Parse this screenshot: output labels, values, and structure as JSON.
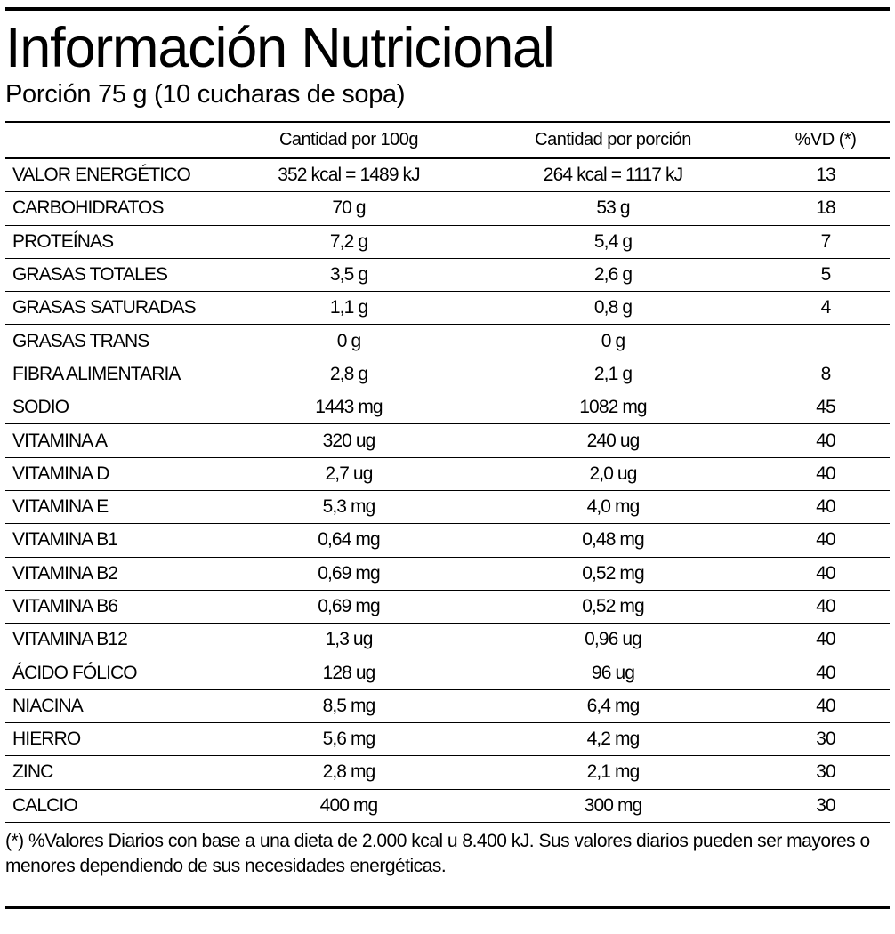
{
  "header": {
    "title": "Información Nutricional",
    "subtitle": "Porción 75 g (10 cucharas de sopa)"
  },
  "table": {
    "columns": [
      "",
      "Cantidad por 100g",
      "Cantidad por porción",
      "%VD (*)"
    ],
    "rows": [
      {
        "name": "VALOR ENERGÉTICO",
        "per100": "352 kcal = 1489 kJ",
        "perServing": "264 kcal = 1117 kJ",
        "vd": "13"
      },
      {
        "name": "CARBOHIDRATOS",
        "per100": "70 g",
        "perServing": "53 g",
        "vd": "18"
      },
      {
        "name": "PROTEÍNAS",
        "per100": "7,2 g",
        "perServing": "5,4 g",
        "vd": "7"
      },
      {
        "name": "GRASAS TOTALES",
        "per100": "3,5 g",
        "perServing": "2,6 g",
        "vd": "5"
      },
      {
        "name": "GRASAS SATURADAS",
        "per100": "1,1 g",
        "perServing": "0,8 g",
        "vd": "4"
      },
      {
        "name": "GRASAS TRANS",
        "per100": "0 g",
        "perServing": "0 g",
        "vd": ""
      },
      {
        "name": "FIBRA ALIMENTARIA",
        "per100": "2,8 g",
        "perServing": "2,1 g",
        "vd": "8"
      },
      {
        "name": "SODIO",
        "per100": "1443 mg",
        "perServing": "1082 mg",
        "vd": "45"
      },
      {
        "name": "VITAMINA A",
        "per100": "320 ug",
        "perServing": "240 ug",
        "vd": "40"
      },
      {
        "name": "VITAMINA D",
        "per100": "2,7 ug",
        "perServing": "2,0 ug",
        "vd": "40"
      },
      {
        "name": "VITAMINA E",
        "per100": "5,3 mg",
        "perServing": "4,0 mg",
        "vd": "40"
      },
      {
        "name": "VITAMINA B1",
        "per100": "0,64 mg",
        "perServing": "0,48 mg",
        "vd": "40"
      },
      {
        "name": "VITAMINA B2",
        "per100": "0,69 mg",
        "perServing": "0,52 mg",
        "vd": "40"
      },
      {
        "name": "VITAMINA B6",
        "per100": "0,69 mg",
        "perServing": "0,52 mg",
        "vd": "40"
      },
      {
        "name": "VITAMINA B12",
        "per100": "1,3 ug",
        "perServing": "0,96 ug",
        "vd": "40"
      },
      {
        "name": "ÁCIDO FÓLICO",
        "per100": "128 ug",
        "perServing": "96 ug",
        "vd": "40"
      },
      {
        "name": "NIACINA",
        "per100": "8,5 mg",
        "perServing": "6,4 mg",
        "vd": "40"
      },
      {
        "name": "HIERRO",
        "per100": "5,6 mg",
        "perServing": "4,2 mg",
        "vd": "30"
      },
      {
        "name": "ZINC",
        "per100": "2,8 mg",
        "perServing": "2,1 mg",
        "vd": "30"
      },
      {
        "name": "CALCIO",
        "per100": "400 mg",
        "perServing": "300 mg",
        "vd": "30"
      }
    ]
  },
  "footnote": "(*) %Valores Diarios con base a una dieta de 2.000 kcal u 8.400 kJ. Sus valores diarios pueden ser mayores o menores dependiendo de sus necesidades energéticas."
}
